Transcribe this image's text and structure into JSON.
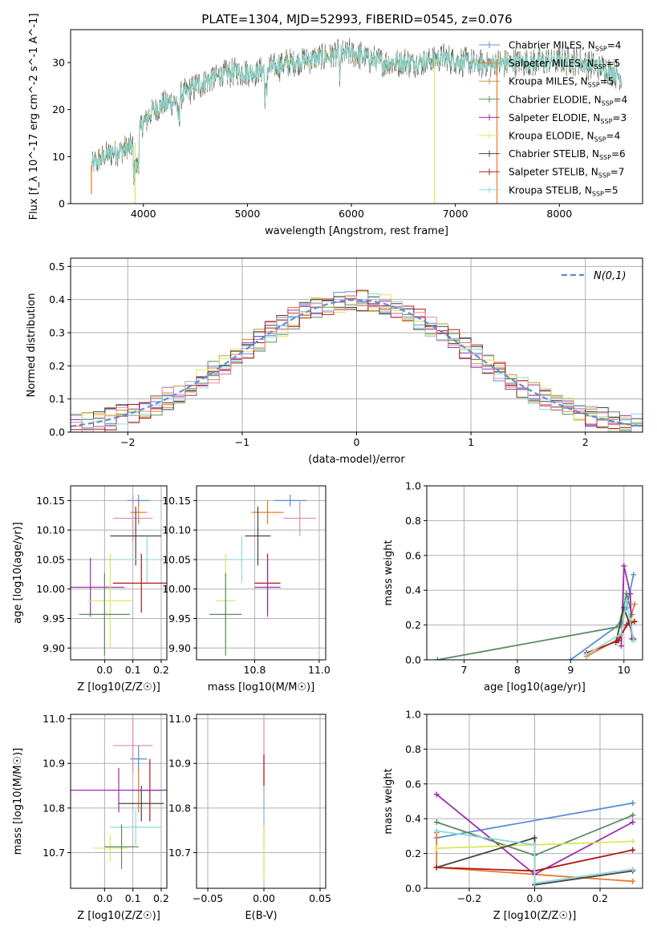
{
  "figure": {
    "title": "PLATE=1304, MJD=52993, FIBERID=0545, z=0.076"
  },
  "colors": {
    "Chabrier MILES": "#5b8fd6",
    "Salpeter MILES": "#e8792b",
    "Kroupa MILES": "#c89a3a",
    "Chabrier ELODIE": "#5b8a62",
    "Salpeter ELODIE": "#9a2fae",
    "Kroupa ELODIE": "#d8e85a",
    "Chabrier STELIB": "#444444",
    "Salpeter STELIB": "#b01818",
    "Kroupa STELIB": "#8fd8dc",
    "pink": "#e08aa8",
    "green_light": "#7ab84a",
    "grid": "#b0b0b0",
    "normal_curve": "#5b8fd6"
  },
  "chart_data": [
    {
      "id": "spectrum",
      "type": "line",
      "xlabel": "wavelength [Angstrom, rest frame]",
      "ylabel": "Flux [f_λ 10^-17 erg cm^-2 s^-1 A^-1]",
      "xlim": [
        3300,
        8800
      ],
      "ylim": [
        0,
        37
      ],
      "xticks": [
        4000,
        5000,
        6000,
        7000,
        8000
      ],
      "yticks": [
        0,
        10,
        20,
        30
      ],
      "grid": false,
      "legend_position": "right",
      "legend": [
        {
          "label": "Chabrier MILES, N",
          "sub": "SSP",
          "suffix": "=4",
          "color_key": "Chabrier MILES"
        },
        {
          "label": "Salpeter MILES, N",
          "sub": "SSP",
          "suffix": "=5",
          "color_key": "Salpeter MILES"
        },
        {
          "label": "Kroupa MILES, N",
          "sub": "SSP",
          "suffix": "=5",
          "color_key": "Kroupa MILES"
        },
        {
          "label": "Chabrier ELODIE, N",
          "sub": "SSP",
          "suffix": "=4",
          "color_key": "Chabrier ELODIE"
        },
        {
          "label": "Salpeter ELODIE, N",
          "sub": "SSP",
          "suffix": "=3",
          "color_key": "Salpeter ELODIE"
        },
        {
          "label": "Kroupa ELODIE, N",
          "sub": "SSP",
          "suffix": "=4",
          "color_key": "Kroupa ELODIE"
        },
        {
          "label": "Chabrier STELIB, N",
          "sub": "SSP",
          "suffix": "=6",
          "color_key": "Chabrier STELIB"
        },
        {
          "label": "Salpeter STELIB, N",
          "sub": "SSP",
          "suffix": "=7",
          "color_key": "Salpeter STELIB"
        },
        {
          "label": "Kroupa STELIB, N",
          "sub": "SSP",
          "suffix": "=5",
          "color_key": "Kroupa STELIB"
        }
      ],
      "trend": [
        [
          3500,
          8
        ],
        [
          3700,
          11
        ],
        [
          3900,
          12
        ],
        [
          4000,
          17
        ],
        [
          4100,
          20
        ],
        [
          4300,
          22
        ],
        [
          4500,
          25
        ],
        [
          4700,
          27
        ],
        [
          4900,
          28
        ],
        [
          5100,
          28
        ],
        [
          5400,
          30
        ],
        [
          5700,
          31
        ],
        [
          6000,
          32
        ],
        [
          6300,
          30
        ],
        [
          6600,
          30
        ],
        [
          6900,
          31
        ],
        [
          7200,
          29.5
        ],
        [
          7500,
          30
        ],
        [
          7800,
          30
        ],
        [
          8100,
          30.5
        ],
        [
          8400,
          29
        ],
        [
          8600,
          27
        ]
      ],
      "spikes": [
        {
          "x": 3500,
          "y": 2,
          "color_key": "Salpeter MILES"
        },
        {
          "x": 3920,
          "y": 0,
          "color_key": "Kroupa ELODIE"
        },
        {
          "x": 6800,
          "y": 0,
          "color_key": "Kroupa ELODIE"
        },
        {
          "x": 7400,
          "y": 0,
          "color_key": "Salpeter MILES"
        }
      ]
    },
    {
      "id": "residual_hist",
      "type": "line",
      "xlabel": "(data-model)/error",
      "ylabel": "Normed distribution",
      "xlim": [
        -2.5,
        2.5
      ],
      "ylim": [
        0,
        0.525
      ],
      "xticks": [
        -2,
        -1,
        0,
        1,
        2
      ],
      "yticks": [
        0.0,
        0.1,
        0.2,
        0.3,
        0.4,
        0.5
      ],
      "grid": true,
      "legend_position": "top-right",
      "legend_label": "N(0,1)",
      "bin_width": 0.1,
      "curve": "normal(0,1)"
    },
    {
      "id": "age_vs_Z",
      "type": "scatter",
      "xlabel": "Z [log10(Z/Z☉)]",
      "ylabel": "age [log10(age/yr)]",
      "xlim": [
        -0.12,
        0.22
      ],
      "ylim": [
        9.88,
        10.175
      ],
      "xticks": [
        0.0,
        0.1,
        0.2
      ],
      "yticks": [
        9.9,
        9.95,
        10.0,
        10.05,
        10.1,
        10.15
      ],
      "grid": true,
      "points": [
        {
          "x": 0.12,
          "y": 10.15,
          "xerr": 0.04,
          "yerr": 0.01,
          "color_key": "Chabrier MILES"
        },
        {
          "x": 0.12,
          "y": 10.13,
          "xerr": 0.03,
          "yerr": 0.02,
          "color_key": "Salpeter MILES"
        },
        {
          "x": 0.1,
          "y": 10.12,
          "xerr": 0.07,
          "yerr": 0.04,
          "color_key": "pink"
        },
        {
          "x": 0.11,
          "y": 10.09,
          "xerr": 0.09,
          "yerr": 0.05,
          "color_key": "Chabrier STELIB"
        },
        {
          "x": 0.15,
          "y": 10.05,
          "xerr": 0.12,
          "yerr": 0.04,
          "color_key": "Kroupa STELIB"
        },
        {
          "x": 0.13,
          "y": 10.01,
          "xerr": 0.1,
          "yerr": 0.05,
          "color_key": "Salpeter STELIB"
        },
        {
          "x": -0.05,
          "y": 10.003,
          "xerr": 0.12,
          "yerr": 0.05,
          "color_key": "Salpeter ELODIE"
        },
        {
          "x": 0.02,
          "y": 9.98,
          "xerr": 0.08,
          "yerr": 0.08,
          "color_key": "Kroupa ELODIE"
        },
        {
          "x": 0.0,
          "y": 9.957,
          "xerr": 0.09,
          "yerr": 0.07,
          "color_key": "Chabrier ELODIE"
        }
      ]
    },
    {
      "id": "age_vs_mass",
      "type": "scatter",
      "xlabel": "mass [log10(M/M☉)]",
      "ylabel": "",
      "xlim": [
        10.62,
        11.02
      ],
      "ylim": [
        9.88,
        10.175
      ],
      "xticks": [
        10.8,
        11.0
      ],
      "yticks": [
        9.9,
        9.95,
        10.0,
        10.05,
        10.1,
        10.15
      ],
      "grid": true,
      "points": [
        {
          "x": 10.91,
          "y": 10.15,
          "xerr": 0.05,
          "yerr": 0.01,
          "color_key": "Chabrier MILES"
        },
        {
          "x": 10.84,
          "y": 10.13,
          "xerr": 0.05,
          "yerr": 0.02,
          "color_key": "Salpeter MILES"
        },
        {
          "x": 10.94,
          "y": 10.12,
          "xerr": 0.05,
          "yerr": 0.03,
          "color_key": "pink"
        },
        {
          "x": 10.81,
          "y": 10.09,
          "xerr": 0.04,
          "yerr": 0.05,
          "color_key": "Chabrier STELIB"
        },
        {
          "x": 10.76,
          "y": 10.05,
          "xerr": 0.04,
          "yerr": 0.04,
          "color_key": "Kroupa STELIB"
        },
        {
          "x": 10.84,
          "y": 10.01,
          "xerr": 0.04,
          "yerr": 0.05,
          "color_key": "Salpeter STELIB"
        },
        {
          "x": 10.84,
          "y": 10.003,
          "xerr": 0.04,
          "yerr": 0.05,
          "color_key": "Salpeter ELODIE"
        },
        {
          "x": 10.71,
          "y": 9.98,
          "xerr": 0.03,
          "yerr": 0.08,
          "color_key": "Kroupa ELODIE"
        },
        {
          "x": 10.71,
          "y": 9.957,
          "xerr": 0.05,
          "yerr": 0.07,
          "color_key": "Chabrier ELODIE"
        }
      ]
    },
    {
      "id": "mass_weight_vs_age",
      "type": "line",
      "xlabel": "age [log10(age/yr)]",
      "ylabel": "mass weight",
      "xlim": [
        6.3,
        10.35
      ],
      "ylim": [
        0,
        1.0
      ],
      "xticks": [
        7,
        8,
        9,
        10
      ],
      "yticks": [
        0.0,
        0.2,
        0.4,
        0.6,
        0.8,
        1.0
      ],
      "grid": true,
      "series": [
        {
          "color_key": "Chabrier MILES",
          "x": [
            9.0,
            9.9,
            10.05,
            10.18
          ],
          "y": [
            0.0,
            0.2,
            0.3,
            0.49
          ]
        },
        {
          "color_key": "Salpeter MILES",
          "x": [
            9.3,
            9.9,
            10.1,
            10.2
          ],
          "y": [
            0.02,
            0.12,
            0.22,
            0.32
          ]
        },
        {
          "color_key": "Chabrier ELODIE",
          "x": [
            6.5,
            9.9,
            10.05,
            10.15
          ],
          "y": [
            0.0,
            0.19,
            0.38,
            0.26
          ]
        },
        {
          "color_key": "Salpeter ELODIE",
          "x": [
            9.95,
            10.0,
            10.12,
            10.15
          ],
          "y": [
            0.08,
            0.54,
            0.38,
            0.12
          ]
        },
        {
          "color_key": "Kroupa ELODIE",
          "x": [
            9.9,
            10.0,
            10.15
          ],
          "y": [
            0.18,
            0.27,
            0.23
          ]
        },
        {
          "color_key": "Chabrier STELIB",
          "x": [
            9.85,
            10.0,
            10.1,
            10.18
          ],
          "y": [
            0.1,
            0.3,
            0.21,
            0.12
          ]
        },
        {
          "color_key": "Salpeter STELIB",
          "x": [
            9.3,
            9.9,
            10.05,
            10.2
          ],
          "y": [
            0.04,
            0.11,
            0.2,
            0.22
          ]
        },
        {
          "color_key": "Kroupa STELIB",
          "x": [
            9.3,
            9.95,
            10.05,
            10.18
          ],
          "y": [
            0.03,
            0.15,
            0.34,
            0.11
          ]
        }
      ]
    },
    {
      "id": "mass_vs_Z",
      "type": "scatter",
      "xlabel": "Z [log10(Z/Z☉)]",
      "ylabel": "mass [log10(M/M☉)]",
      "xlim": [
        -0.12,
        0.22
      ],
      "ylim": [
        10.62,
        11.01
      ],
      "xticks": [
        0.0,
        0.1,
        0.2
      ],
      "yticks": [
        10.7,
        10.8,
        10.9,
        11.0
      ],
      "grid": true,
      "points": [
        {
          "x": 0.12,
          "y": 10.91,
          "xerr": 0.03,
          "yerr": 0.03,
          "color_key": "Chabrier MILES"
        },
        {
          "x": 0.12,
          "y": 10.84,
          "xerr": 0.03,
          "yerr": 0.05,
          "color_key": "Salpeter MILES"
        },
        {
          "x": 0.1,
          "y": 10.94,
          "xerr": 0.07,
          "yerr": 0.06,
          "color_key": "pink"
        },
        {
          "x": 0.13,
          "y": 10.81,
          "xerr": 0.08,
          "yerr": 0.04,
          "color_key": "Chabrier STELIB"
        },
        {
          "x": 0.11,
          "y": 10.757,
          "xerr": 0.09,
          "yerr": 0.04,
          "color_key": "Kroupa STELIB"
        },
        {
          "x": 0.16,
          "y": 10.84,
          "xerr": 0.04,
          "yerr": 0.07,
          "color_key": "Salpeter STELIB"
        },
        {
          "x": 0.05,
          "y": 10.84,
          "xerr": 0.17,
          "yerr": 0.05,
          "color_key": "Salpeter ELODIE"
        },
        {
          "x": 0.02,
          "y": 10.71,
          "xerr": 0.06,
          "yerr": 0.03,
          "color_key": "Kroupa ELODIE"
        },
        {
          "x": 0.06,
          "y": 10.713,
          "xerr": 0.06,
          "yerr": 0.05,
          "color_key": "Chabrier ELODIE"
        }
      ]
    },
    {
      "id": "mass_vs_ebv",
      "type": "scatter",
      "xlabel": "E(B-V)",
      "ylabel": "",
      "xlim": [
        -0.06,
        0.055
      ],
      "ylim": [
        10.62,
        11.01
      ],
      "xticks": [
        -0.05,
        0.0,
        0.05
      ],
      "xtick_labels": [
        "−0.05",
        "0.00",
        "0.05"
      ],
      "yticks": [
        10.7,
        10.8,
        10.9,
        11.0
      ],
      "grid": true,
      "points": [
        {
          "x": 0.0,
          "y": 10.9,
          "xerr": 0.0,
          "yerr": 0.1,
          "color_key": "pink"
        },
        {
          "x": 0.0,
          "y": 10.84,
          "xerr": 0.0,
          "yerr": 0.08,
          "color_key": "Salpeter STELIB"
        },
        {
          "x": 0.0,
          "y": 10.75,
          "xerr": 0.0,
          "yerr": 0.1,
          "color_key": "Kroupa STELIB"
        },
        {
          "x": 0.0,
          "y": 10.7,
          "xerr": 0.0,
          "yerr": 0.06,
          "color_key": "Kroupa ELODIE"
        }
      ]
    },
    {
      "id": "mass_weight_vs_Z",
      "type": "line",
      "xlabel": "Z [log10(Z/Z☉)]",
      "ylabel": "mass weight",
      "xlim": [
        -0.33,
        0.33
      ],
      "ylim": [
        0,
        1.0
      ],
      "xticks": [
        -0.2,
        0.0,
        0.2
      ],
      "yticks": [
        0.0,
        0.2,
        0.4,
        0.6,
        0.8,
        1.0
      ],
      "grid": true,
      "series": [
        {
          "color_key": "Chabrier MILES",
          "x": [
            -0.3,
            0.3
          ],
          "y": [
            0.29,
            0.49
          ]
        },
        {
          "color_key": "Salpeter MILES",
          "x": [
            -0.3,
            0.3
          ],
          "y": [
            0.12,
            0.04
          ]
        },
        {
          "color_key": "Salpeter MILES",
          "x": [
            -0.3,
            -0.3
          ],
          "y": [
            0.12,
            0.32
          ]
        },
        {
          "color_key": "Salpeter ELODIE",
          "x": [
            -0.3,
            0.0,
            0.3
          ],
          "y": [
            0.54,
            0.08,
            0.38
          ]
        },
        {
          "color_key": "Chabrier ELODIE",
          "x": [
            -0.3,
            0.0,
            0.3
          ],
          "y": [
            0.38,
            0.19,
            0.42
          ]
        },
        {
          "color_key": "Kroupa ELODIE",
          "x": [
            -0.3,
            0.3
          ],
          "y": [
            0.23,
            0.27
          ]
        },
        {
          "color_key": "Chabrier STELIB",
          "x": [
            -0.3,
            0.0,
            0.0,
            0.3
          ],
          "y": [
            0.12,
            0.29,
            0.02,
            0.1
          ]
        },
        {
          "color_key": "Salpeter STELIB",
          "x": [
            -0.3,
            0.0,
            0.3
          ],
          "y": [
            0.12,
            0.1,
            0.22
          ]
        },
        {
          "color_key": "Kroupa STELIB",
          "x": [
            -0.3,
            0.0,
            0.0,
            0.3
          ],
          "y": [
            0.33,
            0.25,
            0.03,
            0.11
          ]
        }
      ]
    }
  ]
}
